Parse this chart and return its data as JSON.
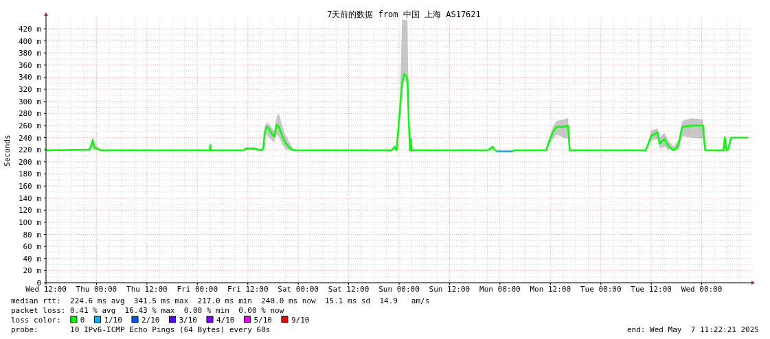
{
  "chart_data": {
    "type": "line",
    "title": "7天前的数据 from 中国 上海 AS17621",
    "ylabel": "Seconds",
    "legend_title": "loss color:",
    "legend": "bottom",
    "grid": true,
    "line_style": "solid",
    "xlim": [
      "2025-04-30T12:00",
      "2025-05-07T12:00"
    ],
    "xticks": [
      {
        "value": "2025-04-30T12:00",
        "label": "Wed 12:00"
      },
      {
        "value": "2025-05-01T00:00",
        "label": "Thu 00:00"
      },
      {
        "value": "2025-05-01T12:00",
        "label": "Thu 12:00"
      },
      {
        "value": "2025-05-02T00:00",
        "label": "Fri 00:00"
      },
      {
        "value": "2025-05-02T12:00",
        "label": "Fri 12:00"
      },
      {
        "value": "2025-05-03T00:00",
        "label": "Sat 00:00"
      },
      {
        "value": "2025-05-03T12:00",
        "label": "Sat 12:00"
      },
      {
        "value": "2025-05-04T00:00",
        "label": "Sun 00:00"
      },
      {
        "value": "2025-05-04T12:00",
        "label": "Sun 12:00"
      },
      {
        "value": "2025-05-05T00:00",
        "label": "Mon 00:00"
      },
      {
        "value": "2025-05-05T12:00",
        "label": "Mon 12:00"
      },
      {
        "value": "2025-05-06T00:00",
        "label": "Tue 00:00"
      },
      {
        "value": "2025-05-06T12:00",
        "label": "Tue 12:00"
      },
      {
        "value": "2025-05-07T00:00",
        "label": "Wed 00:00"
      }
    ],
    "ylim": [
      0,
      437
    ],
    "yticks": [
      0,
      {
        "value": 20,
        "label": "20 m"
      },
      {
        "value": 40,
        "label": "40 m"
      },
      {
        "value": 60,
        "label": "60 m"
      },
      {
        "value": 80,
        "label": "80 m"
      },
      {
        "value": 100,
        "label": "100 m"
      },
      {
        "value": 120,
        "label": "120 m"
      },
      {
        "value": 140,
        "label": "140 m"
      },
      {
        "value": 160,
        "label": "160 m"
      },
      {
        "value": 180,
        "label": "180 m"
      },
      {
        "value": 200,
        "label": "200 m"
      },
      {
        "value": 220,
        "label": "220 m"
      },
      {
        "value": 240,
        "label": "240 m"
      },
      {
        "value": 260,
        "label": "260 m"
      },
      {
        "value": 280,
        "label": "280 m"
      },
      {
        "value": 300,
        "label": "300 m"
      },
      {
        "value": 320,
        "label": "320 m"
      },
      {
        "value": 340,
        "label": "340 m"
      },
      {
        "value": 360,
        "label": "360 m"
      },
      {
        "value": 380,
        "label": "380 m"
      },
      {
        "value": 400,
        "label": "400 m"
      },
      {
        "value": 420,
        "label": "420 m"
      }
    ],
    "series": [
      {
        "name": "0",
        "color": "#00ff00",
        "x": [
          "2025-04-30T12:00",
          "2025-04-30T22:18",
          "2025-04-30T22:48",
          "2025-04-30T23:06",
          "2025-04-30T23:24",
          "2025-04-30T23:54",
          "2025-05-01T00:24",
          "2025-05-01T01:12",
          "2025-05-02T02:54",
          "2025-05-02T03:06",
          "2025-05-02T03:12",
          "2025-05-02T11:06",
          "2025-05-02T11:24",
          "2025-05-02T13:30",
          "2025-05-02T15:12",
          "2025-05-02T15:42",
          "2025-05-02T16:00",
          "2025-05-02T16:30",
          "2025-05-02T17:06",
          "2025-05-02T17:48",
          "2025-05-02T18:18",
          "2025-05-02T18:54",
          "2025-05-02T19:24",
          "2025-05-02T20:06",
          "2025-05-02T20:54",
          "2025-05-02T21:42",
          "2025-05-02T22:30",
          "2025-05-02T23:18",
          "2025-05-03T22:12",
          "2025-05-03T23:00",
          "2025-05-03T23:24",
          "2025-05-03T23:42",
          "2025-05-04T00:12",
          "2025-05-04T00:42",
          "2025-05-04T01:12",
          "2025-05-04T01:42",
          "2025-05-04T02:00",
          "2025-05-04T02:18",
          "2025-05-04T02:36",
          "2025-05-04T02:48",
          "2025-05-04T03:00",
          "2025-05-04T21:06",
          "2025-05-04T22:18",
          "2025-05-04T22:48",
          "2025-05-04T23:36",
          "2025-05-05T02:48",
          "2025-05-05T03:18",
          "2025-05-05T11:00",
          "2025-05-05T11:30",
          "2025-05-05T12:36",
          "2025-05-05T13:30",
          "2025-05-05T15:06",
          "2025-05-05T16:12",
          "2025-05-05T16:36",
          "2025-05-06T10:42",
          "2025-05-06T12:00",
          "2025-05-06T13:30",
          "2025-05-06T14:00",
          "2025-05-06T15:06",
          "2025-05-06T16:06",
          "2025-05-06T17:18",
          "2025-05-06T18:24",
          "2025-05-06T19:24",
          "2025-05-06T21:42",
          "2025-05-07T00:18",
          "2025-05-07T00:48",
          "2025-05-07T05:12",
          "2025-05-07T05:30",
          "2025-05-07T05:54",
          "2025-05-07T06:00",
          "2025-05-07T06:18",
          "2025-05-07T07:00",
          "2025-05-07T10:54"
        ],
        "values": [
          219,
          220,
          228,
          236,
          225,
          222,
          221,
          219,
          219,
          228,
          219,
          219,
          222,
          222,
          219,
          222,
          248,
          258,
          255,
          245,
          242,
          262,
          258,
          245,
          232,
          225,
          220,
          219,
          219,
          225,
          219,
          245,
          287,
          330,
          345,
          342,
          336,
          267,
          219,
          238,
          219,
          219,
          225,
          219,
          217,
          217,
          219,
          219,
          230,
          249,
          258,
          258,
          260,
          219,
          219,
          243,
          249,
          230,
          238,
          226,
          219,
          226,
          258,
          260,
          260,
          219,
          219,
          241,
          219,
          219,
          221,
          240,
          240
        ],
        "lower": [
          219,
          219,
          222,
          225,
          220,
          219,
          219,
          219,
          219,
          222,
          219,
          219,
          219,
          219,
          219,
          219,
          235,
          245,
          240,
          235,
          232,
          245,
          242,
          230,
          222,
          219,
          219,
          219,
          219,
          219,
          219,
          240,
          280,
          320,
          335,
          330,
          325,
          260,
          219,
          230,
          219,
          219,
          219,
          219,
          217,
          217,
          219,
          219,
          225,
          238,
          245,
          240,
          238,
          219,
          219,
          235,
          238,
          222,
          225,
          220,
          219,
          220,
          242,
          240,
          238,
          219,
          219,
          235,
          219,
          219,
          219,
          240,
          240
        ],
        "upper": [
          219,
          222,
          232,
          242,
          232,
          228,
          224,
          219,
          219,
          230,
          219,
          219,
          224,
          224,
          219,
          225,
          258,
          265,
          262,
          255,
          252,
          275,
          280,
          262,
          245,
          235,
          225,
          219,
          219,
          228,
          219,
          248,
          295,
          435,
          435,
          435,
          435,
          275,
          219,
          240,
          219,
          219,
          228,
          219,
          217,
          217,
          219,
          219,
          235,
          258,
          268,
          270,
          272,
          219,
          219,
          252,
          255,
          240,
          248,
          235,
          225,
          235,
          268,
          272,
          270,
          219,
          219,
          243,
          219,
          219,
          221,
          240,
          240
        ]
      },
      {
        "name": "1/10",
        "color": "#00b8ff",
        "x": [
          "2025-05-04T23:36",
          "2025-05-05T02:48"
        ],
        "values": [
          217,
          217
        ]
      },
      {
        "name": "2/10",
        "color": "#0059ff"
      },
      {
        "name": "3/10",
        "color": "#5e00ff"
      },
      {
        "name": "4/10",
        "color": "#7e00ff"
      },
      {
        "name": "5/10",
        "color": "#dd00ff"
      },
      {
        "name": "9/10",
        "color": "#ff0000"
      }
    ],
    "annotations": [
      "median rtt:  224.6 ms avg  341.5 ms max  217.0 ms min  240.0 ms now  15.1 ms sd  14.9   am/s",
      "packet loss: 0.41 % avg  16.43 % max  0.00 % min  0.00 % now",
      "probe:       10 IPv6-ICMP Echo Pings (64 Bytes) every 60s",
      "end: Wed May  7 11:22:21 2025"
    ]
  }
}
